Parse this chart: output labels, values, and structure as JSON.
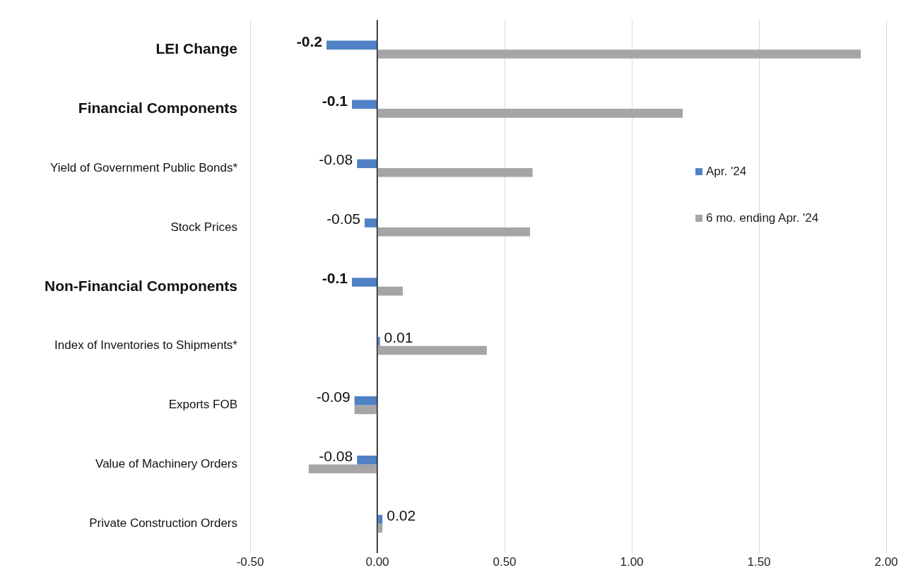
{
  "chart_data": {
    "type": "bar",
    "orientation": "horizontal",
    "categories": [
      "LEI Change",
      "Financial Components",
      "Yield of Government Public Bonds*",
      "Stock Prices",
      "Non-Financial Components",
      "Index of Inventories to Shipments*",
      "Exports FOB",
      "Value of Machinery Orders",
      "Private Construction Orders"
    ],
    "series": [
      {
        "name": "Apr. '24",
        "color": "#4f81c4",
        "values": [
          -0.2,
          -0.1,
          -0.08,
          -0.05,
          -0.1,
          0.01,
          -0.09,
          -0.08,
          0.02
        ],
        "value_labels": [
          "-0.2",
          "-0.1",
          "-0.08",
          "-0.05",
          "-0.1",
          "0.01",
          "-0.09",
          "-0.08",
          "0.02"
        ]
      },
      {
        "name": "6 mo. ending Apr. '24",
        "color": "#a5a5a5",
        "values": [
          1.9,
          1.2,
          0.61,
          0.6,
          0.1,
          0.43,
          -0.09,
          -0.27,
          0.02
        ]
      }
    ],
    "xlim": [
      -0.5,
      2.0
    ],
    "xticks": [
      {
        "value": -0.5,
        "label": "-0.50"
      },
      {
        "value": 0,
        "label": "0.00"
      },
      {
        "value": 0.5,
        "label": "0.50"
      },
      {
        "value": 1,
        "label": "1.00"
      },
      {
        "value": 1.5,
        "label": "1.50"
      },
      {
        "value": 2,
        "label": "2.00"
      }
    ],
    "grid": "x",
    "legend": "right"
  }
}
